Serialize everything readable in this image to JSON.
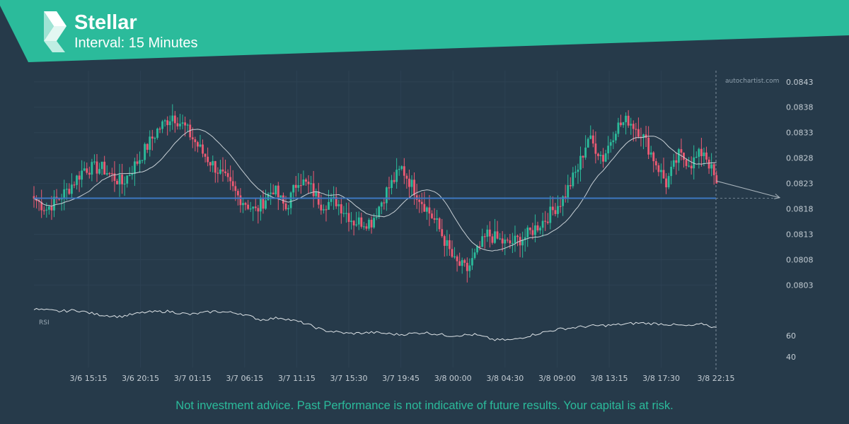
{
  "header": {
    "title": "Stellar",
    "subtitle": "Interval: 15 Minutes"
  },
  "footer": {
    "disclaimer": "Not investment advice. Past Performance is not indicative of future results. Your capital is at risk."
  },
  "colors": {
    "background": "#263a4a",
    "banner": "#2bbb9b",
    "bull": "#2bbb9b",
    "bear": "#ed5a73",
    "level_line": "#3d78c1",
    "ma_line": "#c8d0d6",
    "grid": "#2d4253",
    "axis_text": "#c3ccd3"
  },
  "chart_data": {
    "type": "candlestick",
    "watermark": "autochartist.com",
    "y_ticks": [
      "0.0843",
      "0.0838",
      "0.0833",
      "0.0828",
      "0.0823",
      "0.0818",
      "0.0813",
      "0.0808",
      "0.0803"
    ],
    "ylim": [
      0.08,
      0.08445
    ],
    "x_ticks": [
      "3/6 15:15",
      "3/6 20:15",
      "3/7 01:15",
      "3/7 06:15",
      "3/7 11:15",
      "3/7 15:30",
      "3/7 19:45",
      "3/8 00:00",
      "3/8 04:30",
      "3/8 09:00",
      "3/8 13:15",
      "3/8 17:30",
      "3/8 22:15"
    ],
    "current_time_label": "3/8 22:15",
    "level": 0.08201,
    "projection": [
      0.08235,
      0.08202
    ],
    "anchors": [
      [
        0,
        0.082
      ],
      [
        5,
        0.0818
      ],
      [
        13,
        0.08215
      ],
      [
        20,
        0.0826
      ],
      [
        27,
        0.0826
      ],
      [
        35,
        0.0823
      ],
      [
        42,
        0.0828
      ],
      [
        49,
        0.08335
      ],
      [
        55,
        0.08365
      ],
      [
        60,
        0.0834
      ],
      [
        67,
        0.0829
      ],
      [
        74,
        0.0825
      ],
      [
        81,
        0.08205
      ],
      [
        88,
        0.08175
      ],
      [
        95,
        0.0822
      ],
      [
        100,
        0.0818
      ],
      [
        105,
        0.0824
      ],
      [
        110,
        0.0822
      ],
      [
        114,
        0.0819
      ],
      [
        120,
        0.08195
      ],
      [
        127,
        0.08155
      ],
      [
        134,
        0.08155
      ],
      [
        140,
        0.08215
      ],
      [
        146,
        0.0826
      ],
      [
        152,
        0.0821
      ],
      [
        160,
        0.0815
      ],
      [
        167,
        0.08075
      ],
      [
        172,
        0.0806
      ],
      [
        180,
        0.0813
      ],
      [
        188,
        0.0811
      ],
      [
        195,
        0.08125
      ],
      [
        203,
        0.0816
      ],
      [
        210,
        0.082
      ],
      [
        216,
        0.0826
      ],
      [
        220,
        0.0832
      ],
      [
        226,
        0.0828
      ],
      [
        231,
        0.0834
      ],
      [
        236,
        0.08355
      ],
      [
        241,
        0.0833
      ],
      [
        246,
        0.0828
      ],
      [
        251,
        0.0823
      ],
      [
        256,
        0.08285
      ],
      [
        261,
        0.0827
      ],
      [
        266,
        0.08295
      ],
      [
        271,
        0.0823
      ]
    ],
    "rsi": {
      "label": "RSI",
      "ticks": [
        "60",
        "40"
      ],
      "ylim": [
        30,
        90
      ],
      "anchors": [
        [
          0,
          85
        ],
        [
          10,
          83
        ],
        [
          17,
          84
        ],
        [
          25,
          80
        ],
        [
          34,
          78
        ],
        [
          44,
          82
        ],
        [
          53,
          83
        ],
        [
          62,
          80
        ],
        [
          72,
          83
        ],
        [
          82,
          81
        ],
        [
          90,
          75
        ],
        [
          98,
          77
        ],
        [
          107,
          72
        ],
        [
          115,
          65
        ],
        [
          125,
          62
        ],
        [
          135,
          63
        ],
        [
          145,
          61
        ],
        [
          155,
          63
        ],
        [
          165,
          60
        ],
        [
          175,
          61
        ],
        [
          183,
          56
        ],
        [
          190,
          56
        ],
        [
          200,
          62
        ],
        [
          208,
          66
        ],
        [
          220,
          69
        ],
        [
          230,
          70
        ],
        [
          240,
          72
        ],
        [
          250,
          71
        ],
        [
          260,
          69
        ],
        [
          266,
          71
        ],
        [
          271,
          67
        ]
      ]
    }
  }
}
